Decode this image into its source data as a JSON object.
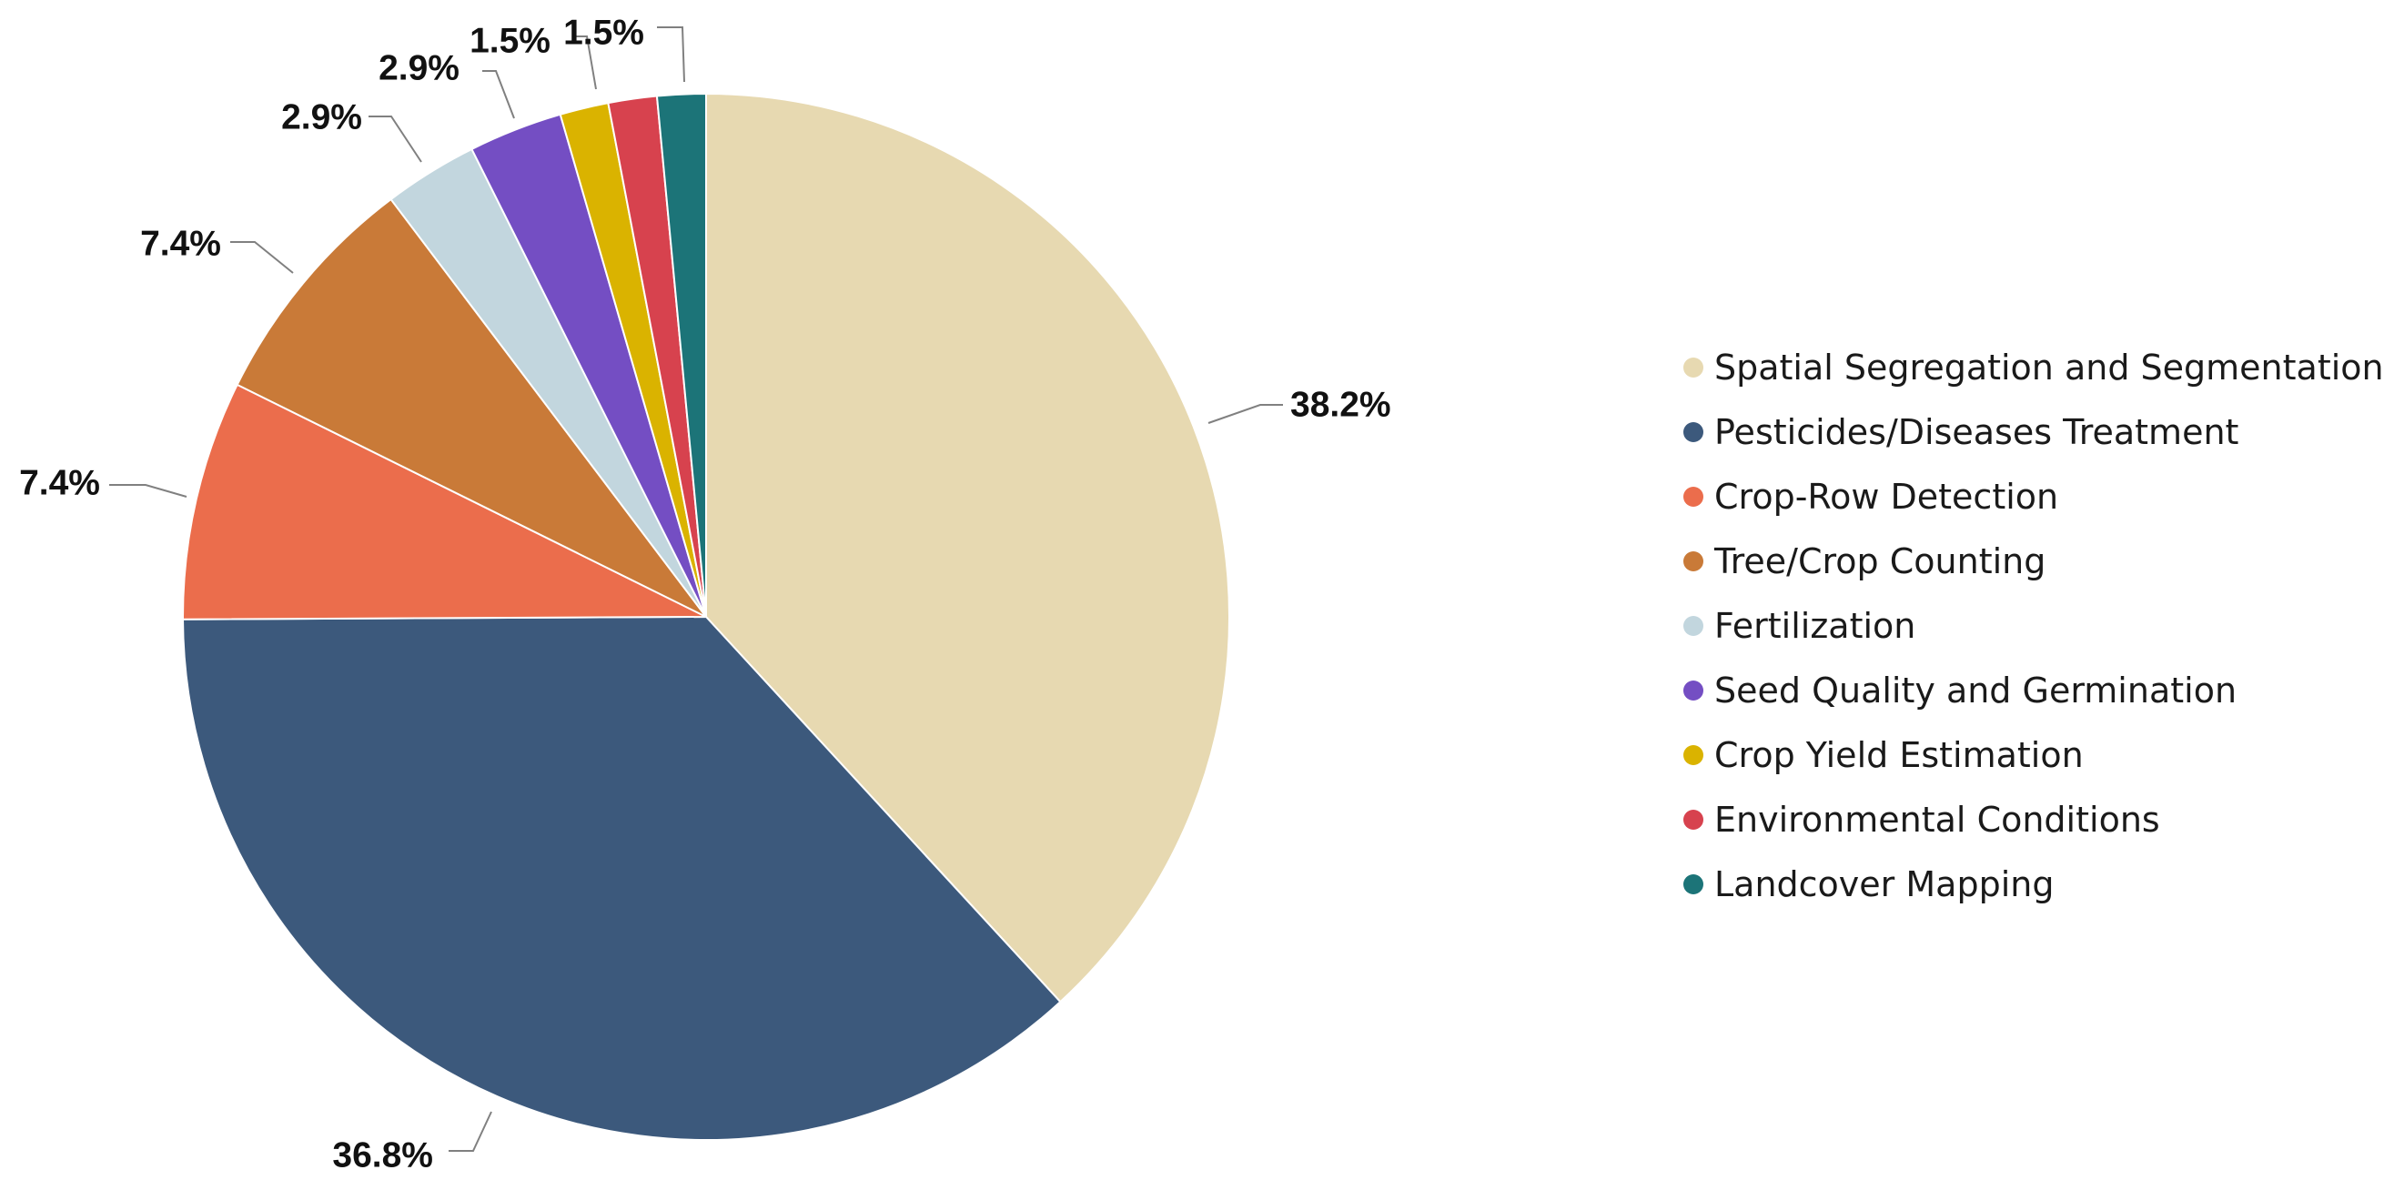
{
  "chart_data": {
    "type": "pie",
    "title": "",
    "start_angle": "12 o'clock",
    "direction": "clockwise",
    "legend_position": "right",
    "categories": [
      "Spatial Segregation and Segmentation",
      "Pesticides/Diseases Treatment",
      "Crop-Row Detection",
      "Tree/Crop Counting",
      "Fertilization",
      "Seed Quality and Germination",
      "Crop Yield Estimation",
      "Environmental Conditions",
      "Landcover Mapping"
    ],
    "values": [
      38.2,
      36.8,
      7.4,
      7.4,
      2.9,
      2.9,
      1.5,
      1.5,
      1.5
    ],
    "labels": [
      "38.2%",
      "36.8%",
      "7.4%",
      "7.4%",
      "2.9%",
      "2.9%",
      "1.5%",
      "1.5%",
      "1.5%"
    ],
    "colors": [
      "#E7D9B1",
      "#3C597C",
      "#EB6D4C",
      "#C97A38",
      "#C2D6DE",
      "#744EC3",
      "#DAB300",
      "#D7424E",
      "#1C7478"
    ],
    "unit": "%"
  }
}
